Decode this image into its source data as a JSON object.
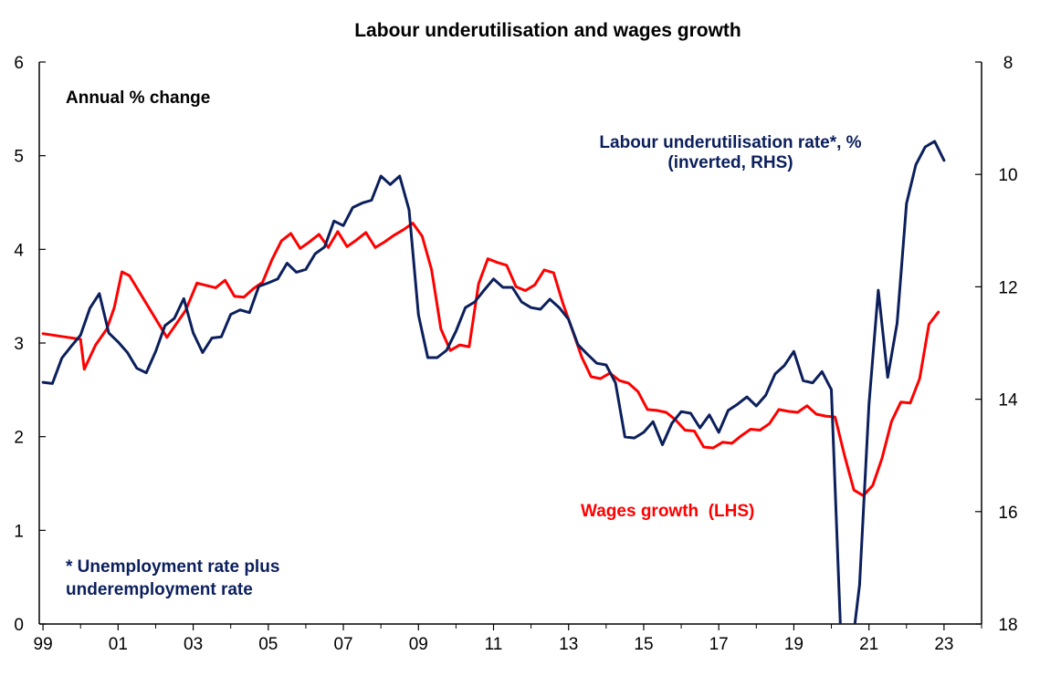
{
  "chart_data": {
    "type": "line",
    "title": "Labour underutilisation and wages growth",
    "subtitle": "Annual % change",
    "x_tick_labels": [
      "99",
      "01",
      "03",
      "05",
      "07",
      "09",
      "11",
      "13",
      "15",
      "17",
      "19",
      "21",
      "23"
    ],
    "x_tick_years": [
      1999,
      2001,
      2003,
      2005,
      2007,
      2009,
      2011,
      2013,
      2015,
      2017,
      2019,
      2021,
      2023
    ],
    "xlim": [
      1998.9,
      2024.0
    ],
    "y_left": {
      "lim": [
        0,
        6
      ],
      "ticks": [
        "0",
        "1",
        "2",
        "3",
        "4",
        "5",
        "6"
      ]
    },
    "y_right": {
      "lim": [
        8,
        18
      ],
      "inverted": true,
      "ticks": [
        "8",
        "10",
        "12",
        "14",
        "16",
        "18"
      ]
    },
    "footnote": [
      "* Unemployment rate plus",
      "underemployment rate"
    ],
    "colors": {
      "wages": "#ff0000",
      "underutilisation": "#0b1f5c",
      "axis": "#000000"
    },
    "series": [
      {
        "name": "Wages growth  (LHS)",
        "axis": "left",
        "color": "#ff0000",
        "points": [
          [
            1999.0,
            3.1
          ],
          [
            1999.5,
            3.07
          ],
          [
            2000.0,
            3.04
          ],
          [
            2000.1,
            2.72
          ],
          [
            2000.4,
            2.98
          ],
          [
            2000.7,
            3.15
          ],
          [
            2000.9,
            3.38
          ],
          [
            2001.1,
            3.76
          ],
          [
            2001.3,
            3.72
          ],
          [
            2002.3,
            3.06
          ],
          [
            2002.8,
            3.35
          ],
          [
            2003.1,
            3.64
          ],
          [
            2003.6,
            3.59
          ],
          [
            2003.85,
            3.67
          ],
          [
            2004.1,
            3.5
          ],
          [
            2004.35,
            3.49
          ],
          [
            2004.6,
            3.58
          ],
          [
            2004.85,
            3.65
          ],
          [
            2005.1,
            3.89
          ],
          [
            2005.35,
            4.09
          ],
          [
            2005.6,
            4.17
          ],
          [
            2005.85,
            4.01
          ],
          [
            2006.1,
            4.08
          ],
          [
            2006.35,
            4.16
          ],
          [
            2006.6,
            4.02
          ],
          [
            2006.85,
            4.19
          ],
          [
            2007.1,
            4.03
          ],
          [
            2007.35,
            4.1
          ],
          [
            2007.6,
            4.18
          ],
          [
            2007.85,
            4.02
          ],
          [
            2008.1,
            4.08
          ],
          [
            2008.35,
            4.15
          ],
          [
            2008.6,
            4.21
          ],
          [
            2008.85,
            4.28
          ],
          [
            2009.1,
            4.14
          ],
          [
            2009.35,
            3.78
          ],
          [
            2009.6,
            3.15
          ],
          [
            2009.85,
            2.92
          ],
          [
            2010.1,
            2.98
          ],
          [
            2010.35,
            2.96
          ],
          [
            2010.6,
            3.63
          ],
          [
            2010.85,
            3.9
          ],
          [
            2011.1,
            3.86
          ],
          [
            2011.35,
            3.83
          ],
          [
            2011.6,
            3.6
          ],
          [
            2011.85,
            3.56
          ],
          [
            2012.1,
            3.62
          ],
          [
            2012.35,
            3.78
          ],
          [
            2012.6,
            3.75
          ],
          [
            2012.85,
            3.42
          ],
          [
            2013.1,
            3.14
          ],
          [
            2013.35,
            2.85
          ],
          [
            2013.6,
            2.64
          ],
          [
            2013.85,
            2.62
          ],
          [
            2014.1,
            2.68
          ],
          [
            2014.35,
            2.6
          ],
          [
            2014.6,
            2.57
          ],
          [
            2014.85,
            2.48
          ],
          [
            2015.1,
            2.29
          ],
          [
            2015.35,
            2.28
          ],
          [
            2015.6,
            2.26
          ],
          [
            2015.85,
            2.18
          ],
          [
            2016.1,
            2.07
          ],
          [
            2016.35,
            2.06
          ],
          [
            2016.6,
            1.89
          ],
          [
            2016.85,
            1.88
          ],
          [
            2017.1,
            1.94
          ],
          [
            2017.35,
            1.93
          ],
          [
            2017.6,
            2.01
          ],
          [
            2017.85,
            2.08
          ],
          [
            2018.1,
            2.07
          ],
          [
            2018.35,
            2.14
          ],
          [
            2018.6,
            2.29
          ],
          [
            2018.85,
            2.27
          ],
          [
            2019.1,
            2.26
          ],
          [
            2019.35,
            2.33
          ],
          [
            2019.6,
            2.24
          ],
          [
            2019.85,
            2.22
          ],
          [
            2020.1,
            2.21
          ],
          [
            2020.35,
            1.8
          ],
          [
            2020.6,
            1.43
          ],
          [
            2020.85,
            1.37
          ],
          [
            2021.1,
            1.48
          ],
          [
            2021.35,
            1.77
          ],
          [
            2021.6,
            2.16
          ],
          [
            2021.85,
            2.37
          ],
          [
            2022.1,
            2.36
          ],
          [
            2022.35,
            2.62
          ],
          [
            2022.6,
            3.2
          ],
          [
            2022.85,
            3.33
          ]
        ]
      },
      {
        "name": "Labour underutilisation rate*, %\n(inverted, RHS)",
        "axis": "right",
        "color": "#0b1f5c",
        "points": [
          [
            1999.0,
            13.7
          ],
          [
            1999.25,
            13.72
          ],
          [
            1999.5,
            13.27
          ],
          [
            1999.75,
            13.06
          ],
          [
            2000.0,
            12.86
          ],
          [
            2000.25,
            12.38
          ],
          [
            2000.5,
            12.12
          ],
          [
            2000.75,
            12.82
          ],
          [
            2001.0,
            12.98
          ],
          [
            2001.25,
            13.17
          ],
          [
            2001.5,
            13.45
          ],
          [
            2001.75,
            13.53
          ],
          [
            2002.0,
            13.15
          ],
          [
            2002.25,
            12.69
          ],
          [
            2002.5,
            12.56
          ],
          [
            2002.75,
            12.21
          ],
          [
            2003.0,
            12.82
          ],
          [
            2003.25,
            13.17
          ],
          [
            2003.5,
            12.91
          ],
          [
            2003.75,
            12.89
          ],
          [
            2004.0,
            12.49
          ],
          [
            2004.25,
            12.41
          ],
          [
            2004.5,
            12.46
          ],
          [
            2004.75,
            11.99
          ],
          [
            2005.0,
            11.93
          ],
          [
            2005.25,
            11.86
          ],
          [
            2005.5,
            11.58
          ],
          [
            2005.75,
            11.74
          ],
          [
            2006.0,
            11.69
          ],
          [
            2006.25,
            11.41
          ],
          [
            2006.5,
            11.29
          ],
          [
            2006.75,
            10.83
          ],
          [
            2007.0,
            10.91
          ],
          [
            2007.25,
            10.59
          ],
          [
            2007.5,
            10.51
          ],
          [
            2007.75,
            10.46
          ],
          [
            2008.0,
            10.03
          ],
          [
            2008.25,
            10.18
          ],
          [
            2008.5,
            10.03
          ],
          [
            2008.75,
            10.63
          ],
          [
            2009.0,
            12.5
          ],
          [
            2009.25,
            13.26
          ],
          [
            2009.5,
            13.26
          ],
          [
            2009.75,
            13.13
          ],
          [
            2010.0,
            12.79
          ],
          [
            2010.25,
            12.37
          ],
          [
            2010.5,
            12.27
          ],
          [
            2010.75,
            12.06
          ],
          [
            2011.0,
            11.86
          ],
          [
            2011.25,
            12.01
          ],
          [
            2011.5,
            12.01
          ],
          [
            2011.75,
            12.27
          ],
          [
            2012.0,
            12.37
          ],
          [
            2012.25,
            12.4
          ],
          [
            2012.5,
            12.22
          ],
          [
            2012.75,
            12.37
          ],
          [
            2013.0,
            12.58
          ],
          [
            2013.25,
            13.03
          ],
          [
            2013.5,
            13.2
          ],
          [
            2013.75,
            13.36
          ],
          [
            2014.0,
            13.39
          ],
          [
            2014.25,
            13.71
          ],
          [
            2014.5,
            14.67
          ],
          [
            2014.75,
            14.69
          ],
          [
            2015.0,
            14.59
          ],
          [
            2015.25,
            14.4
          ],
          [
            2015.5,
            14.81
          ],
          [
            2015.75,
            14.43
          ],
          [
            2016.0,
            14.22
          ],
          [
            2016.25,
            14.25
          ],
          [
            2016.5,
            14.51
          ],
          [
            2016.75,
            14.28
          ],
          [
            2017.0,
            14.59
          ],
          [
            2017.25,
            14.2
          ],
          [
            2017.5,
            14.09
          ],
          [
            2017.75,
            13.96
          ],
          [
            2018.0,
            14.12
          ],
          [
            2018.25,
            13.93
          ],
          [
            2018.5,
            13.55
          ],
          [
            2018.75,
            13.4
          ],
          [
            2019.0,
            13.15
          ],
          [
            2019.25,
            13.67
          ],
          [
            2019.5,
            13.71
          ],
          [
            2019.75,
            13.51
          ],
          [
            2020.0,
            13.83
          ],
          [
            2020.25,
            18.2
          ],
          [
            2020.5,
            18.7
          ],
          [
            2020.75,
            17.3
          ],
          [
            2021.0,
            14.09
          ],
          [
            2021.25,
            12.06
          ],
          [
            2021.5,
            13.61
          ],
          [
            2021.75,
            12.65
          ],
          [
            2022.0,
            10.52
          ],
          [
            2022.25,
            9.83
          ],
          [
            2022.5,
            9.51
          ],
          [
            2022.75,
            9.41
          ],
          [
            2023.0,
            9.75
          ]
        ]
      }
    ]
  }
}
